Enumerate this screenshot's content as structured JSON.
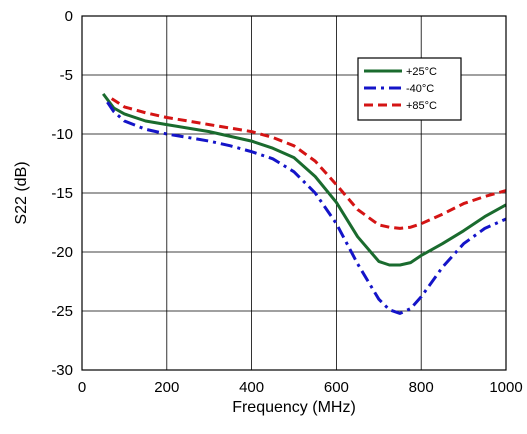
{
  "chart_data": {
    "type": "line",
    "title": "",
    "xlabel": "Frequency (MHz)",
    "ylabel": "S22 (dB)",
    "xlim": [
      0,
      1000
    ],
    "ylim": [
      -30,
      0
    ],
    "xticks": [
      0,
      200,
      400,
      600,
      800,
      1000
    ],
    "yticks": [
      0,
      -5,
      -10,
      -15,
      -20,
      -25,
      -30
    ],
    "grid": true,
    "legend_position": "top-right",
    "series": [
      {
        "name": "+25°C",
        "color": "#1a6b2e",
        "dash": "solid",
        "x": [
          50,
          75,
          100,
          150,
          200,
          250,
          300,
          350,
          400,
          450,
          500,
          550,
          600,
          650,
          700,
          725,
          750,
          775,
          800,
          850,
          900,
          950,
          1000
        ],
        "y": [
          -6.6,
          -7.8,
          -8.3,
          -8.9,
          -9.2,
          -9.5,
          -9.8,
          -10.2,
          -10.6,
          -11.2,
          -12.0,
          -13.6,
          -15.8,
          -18.7,
          -20.8,
          -21.1,
          -21.1,
          -20.9,
          -20.3,
          -19.3,
          -18.2,
          -17.0,
          -16.0
        ]
      },
      {
        "name": "-40°C",
        "color": "#1414c8",
        "dash": "dashdot",
        "x": [
          60,
          75,
          100,
          150,
          200,
          250,
          300,
          350,
          400,
          450,
          500,
          550,
          600,
          650,
          700,
          725,
          750,
          775,
          800,
          850,
          900,
          950,
          1000
        ],
        "y": [
          -7.3,
          -8.1,
          -8.9,
          -9.6,
          -10.0,
          -10.3,
          -10.6,
          -11.0,
          -11.5,
          -12.1,
          -13.2,
          -15.0,
          -17.6,
          -21.0,
          -24.0,
          -24.9,
          -25.2,
          -24.8,
          -23.8,
          -21.3,
          -19.3,
          -18.0,
          -17.2
        ]
      },
      {
        "name": "+85°C",
        "color": "#d41414",
        "dash": "dashed",
        "x": [
          70,
          100,
          150,
          200,
          250,
          300,
          350,
          400,
          450,
          500,
          550,
          600,
          650,
          700,
          725,
          750,
          775,
          800,
          850,
          900,
          950,
          1000
        ],
        "y": [
          -7.0,
          -7.7,
          -8.2,
          -8.6,
          -8.9,
          -9.2,
          -9.5,
          -9.8,
          -10.3,
          -11.0,
          -12.3,
          -14.3,
          -16.4,
          -17.7,
          -17.9,
          -18.0,
          -17.9,
          -17.6,
          -16.8,
          -15.9,
          -15.3,
          -14.8
        ]
      }
    ]
  }
}
